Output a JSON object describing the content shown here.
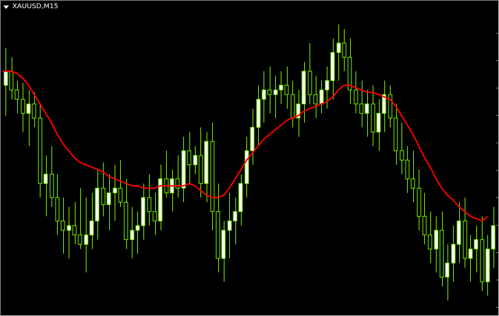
{
  "header": {
    "symbol_label": "XAUUSD,M15",
    "menu_icon": "triangle-down-icon"
  },
  "colors": {
    "background": "#000000",
    "candle": "#7cfc00",
    "bull_body": "#ffffff",
    "ma_line": "#ff0000",
    "frame": "#8c8c8c"
  },
  "chart_data": {
    "type": "candlestick",
    "ylim": [
      0,
      100
    ],
    "moving_average": {
      "type": "line",
      "color": "#ff0000"
    },
    "candles": [
      {
        "o": 78,
        "h": 94,
        "l": 65,
        "c": 84
      },
      {
        "o": 84,
        "h": 90,
        "l": 72,
        "c": 76
      },
      {
        "o": 76,
        "h": 80,
        "l": 66,
        "c": 72
      },
      {
        "o": 72,
        "h": 79,
        "l": 58,
        "c": 66
      },
      {
        "o": 66,
        "h": 76,
        "l": 52,
        "c": 70
      },
      {
        "o": 70,
        "h": 75,
        "l": 60,
        "c": 64
      },
      {
        "o": 64,
        "h": 70,
        "l": 30,
        "c": 36
      },
      {
        "o": 36,
        "h": 48,
        "l": 22,
        "c": 40
      },
      {
        "o": 40,
        "h": 52,
        "l": 26,
        "c": 30
      },
      {
        "o": 30,
        "h": 40,
        "l": 14,
        "c": 20
      },
      {
        "o": 20,
        "h": 30,
        "l": 6,
        "c": 16
      },
      {
        "o": 16,
        "h": 26,
        "l": 4,
        "c": 18
      },
      {
        "o": 18,
        "h": 28,
        "l": 10,
        "c": 14
      },
      {
        "o": 14,
        "h": 34,
        "l": 8,
        "c": 10
      },
      {
        "o": 10,
        "h": 30,
        "l": -2,
        "c": 14
      },
      {
        "o": 14,
        "h": 32,
        "l": 8,
        "c": 20
      },
      {
        "o": 20,
        "h": 42,
        "l": 12,
        "c": 34
      },
      {
        "o": 34,
        "h": 45,
        "l": 22,
        "c": 27
      },
      {
        "o": 27,
        "h": 40,
        "l": 16,
        "c": 32
      },
      {
        "o": 32,
        "h": 44,
        "l": 20,
        "c": 34
      },
      {
        "o": 34,
        "h": 46,
        "l": 26,
        "c": 28
      },
      {
        "o": 28,
        "h": 38,
        "l": 8,
        "c": 12
      },
      {
        "o": 12,
        "h": 26,
        "l": 4,
        "c": 16
      },
      {
        "o": 16,
        "h": 24,
        "l": 6,
        "c": 18
      },
      {
        "o": 18,
        "h": 36,
        "l": 12,
        "c": 30
      },
      {
        "o": 30,
        "h": 40,
        "l": 18,
        "c": 24
      },
      {
        "o": 24,
        "h": 32,
        "l": 14,
        "c": 20
      },
      {
        "o": 20,
        "h": 44,
        "l": 16,
        "c": 38
      },
      {
        "o": 38,
        "h": 50,
        "l": 30,
        "c": 32
      },
      {
        "o": 32,
        "h": 42,
        "l": 24,
        "c": 38
      },
      {
        "o": 38,
        "h": 48,
        "l": 30,
        "c": 34
      },
      {
        "o": 34,
        "h": 56,
        "l": 28,
        "c": 50
      },
      {
        "o": 50,
        "h": 58,
        "l": 36,
        "c": 44
      },
      {
        "o": 44,
        "h": 52,
        "l": 40,
        "c": 48
      },
      {
        "o": 48,
        "h": 60,
        "l": 30,
        "c": 36
      },
      {
        "o": 36,
        "h": 58,
        "l": 28,
        "c": 54
      },
      {
        "o": 54,
        "h": 62,
        "l": 16,
        "c": 24
      },
      {
        "o": 24,
        "h": 36,
        "l": -2,
        "c": 4
      },
      {
        "o": 4,
        "h": 20,
        "l": -6,
        "c": 16
      },
      {
        "o": 16,
        "h": 32,
        "l": 4,
        "c": 20
      },
      {
        "o": 20,
        "h": 30,
        "l": 10,
        "c": 24
      },
      {
        "o": 24,
        "h": 40,
        "l": 18,
        "c": 36
      },
      {
        "o": 36,
        "h": 56,
        "l": 30,
        "c": 50
      },
      {
        "o": 50,
        "h": 68,
        "l": 44,
        "c": 60
      },
      {
        "o": 60,
        "h": 78,
        "l": 52,
        "c": 72
      },
      {
        "o": 72,
        "h": 84,
        "l": 62,
        "c": 76
      },
      {
        "o": 76,
        "h": 86,
        "l": 66,
        "c": 74
      },
      {
        "o": 74,
        "h": 82,
        "l": 64,
        "c": 76
      },
      {
        "o": 76,
        "h": 84,
        "l": 70,
        "c": 78
      },
      {
        "o": 78,
        "h": 86,
        "l": 68,
        "c": 74
      },
      {
        "o": 74,
        "h": 80,
        "l": 60,
        "c": 64
      },
      {
        "o": 64,
        "h": 76,
        "l": 56,
        "c": 70
      },
      {
        "o": 70,
        "h": 88,
        "l": 62,
        "c": 84
      },
      {
        "o": 84,
        "h": 96,
        "l": 70,
        "c": 74
      },
      {
        "o": 74,
        "h": 82,
        "l": 64,
        "c": 70
      },
      {
        "o": 70,
        "h": 80,
        "l": 66,
        "c": 76
      },
      {
        "o": 76,
        "h": 86,
        "l": 68,
        "c": 80
      },
      {
        "o": 80,
        "h": 98,
        "l": 72,
        "c": 92
      },
      {
        "o": 92,
        "h": 104,
        "l": 80,
        "c": 96
      },
      {
        "o": 96,
        "h": 102,
        "l": 84,
        "c": 90
      },
      {
        "o": 90,
        "h": 98,
        "l": 70,
        "c": 76
      },
      {
        "o": 76,
        "h": 84,
        "l": 66,
        "c": 70
      },
      {
        "o": 70,
        "h": 80,
        "l": 60,
        "c": 66
      },
      {
        "o": 66,
        "h": 76,
        "l": 56,
        "c": 70
      },
      {
        "o": 70,
        "h": 78,
        "l": 52,
        "c": 58
      },
      {
        "o": 58,
        "h": 72,
        "l": 50,
        "c": 66
      },
      {
        "o": 66,
        "h": 80,
        "l": 58,
        "c": 74
      },
      {
        "o": 74,
        "h": 78,
        "l": 60,
        "c": 64
      },
      {
        "o": 64,
        "h": 70,
        "l": 44,
        "c": 50
      },
      {
        "o": 50,
        "h": 62,
        "l": 40,
        "c": 46
      },
      {
        "o": 46,
        "h": 52,
        "l": 32,
        "c": 38
      },
      {
        "o": 38,
        "h": 50,
        "l": 28,
        "c": 34
      },
      {
        "o": 34,
        "h": 42,
        "l": 16,
        "c": 22
      },
      {
        "o": 22,
        "h": 32,
        "l": 10,
        "c": 14
      },
      {
        "o": 14,
        "h": 24,
        "l": 2,
        "c": 8
      },
      {
        "o": 8,
        "h": 22,
        "l": -2,
        "c": 16
      },
      {
        "o": 16,
        "h": 24,
        "l": -8,
        "c": -4
      },
      {
        "o": -4,
        "h": 10,
        "l": -14,
        "c": 2
      },
      {
        "o": 2,
        "h": 18,
        "l": -6,
        "c": 10
      },
      {
        "o": 10,
        "h": 28,
        "l": 2,
        "c": 20
      },
      {
        "o": 20,
        "h": 30,
        "l": 0,
        "c": 4
      },
      {
        "o": 4,
        "h": 14,
        "l": -6,
        "c": 8
      },
      {
        "o": 8,
        "h": 18,
        "l": -2,
        "c": 12
      },
      {
        "o": 12,
        "h": 22,
        "l": -10,
        "c": -6
      },
      {
        "o": -6,
        "h": 14,
        "l": -12,
        "c": 8
      },
      {
        "o": 8,
        "h": 26,
        "l": 0,
        "c": 18
      }
    ],
    "ma_values": [
      84,
      84,
      83,
      81,
      78,
      74,
      70,
      66,
      62,
      57,
      53,
      50,
      47,
      45,
      44,
      43,
      42,
      41,
      39,
      38,
      37,
      36,
      35,
      35,
      34,
      34,
      34,
      35,
      35,
      35,
      35,
      35,
      36,
      35,
      33,
      31,
      30,
      30,
      31,
      34,
      38,
      42,
      46,
      49,
      52,
      55,
      57,
      59,
      61,
      63,
      64,
      65,
      67,
      68,
      69,
      70,
      71,
      73,
      76,
      78,
      78,
      77,
      76,
      75,
      75,
      74,
      73,
      72,
      69,
      65,
      61,
      57,
      52,
      47,
      43,
      38,
      34,
      31,
      29,
      26,
      24,
      22,
      21,
      20,
      22
    ]
  }
}
